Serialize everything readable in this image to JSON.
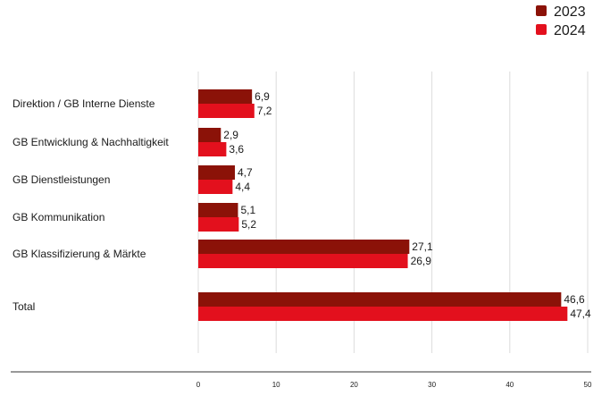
{
  "chart_data": {
    "type": "bar",
    "orientation": "horizontal",
    "categories": [
      "Direktion / GB Interne Dienste",
      "GB Entwicklung & Nachhaltigkeit",
      "GB Dienstleistungen",
      "GB Kommunikation",
      "GB Klassifizierung & Märkte",
      "Total"
    ],
    "series": [
      {
        "name": "2023",
        "color": "#8b1208",
        "values": [
          6.9,
          2.9,
          4.7,
          5.1,
          27.1,
          46.6
        ],
        "labels": [
          "6,9",
          "2,9",
          "4,7",
          "5,1",
          "27,1",
          "46,6"
        ]
      },
      {
        "name": "2024",
        "color": "#e3101d",
        "values": [
          7.2,
          3.6,
          4.4,
          5.2,
          26.9,
          47.4
        ],
        "labels": [
          "7,2",
          "3,6",
          "4,4",
          "5,2",
          "26,9",
          "47,4"
        ]
      }
    ],
    "xlim": [
      0,
      50
    ],
    "xticks": [
      0,
      10,
      20,
      30,
      40,
      50
    ],
    "grid": true,
    "legend_position": "top-right"
  }
}
